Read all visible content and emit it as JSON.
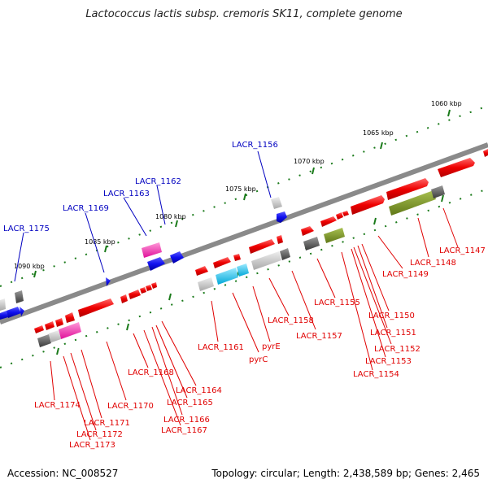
{
  "title": "Lactococcus lactis subsp. cremoris SK11, complete genome",
  "accession": "Accession: NC_008527",
  "topology": "Topology: circular; Length: 2,438,589 bp; Genes: 2,465",
  "colors": {
    "label_red": "#e00000",
    "label_blue": "#0000c0",
    "backbone": "#8a8a8a",
    "tick": "#2a8a2a"
  },
  "scale_marks": [
    "1060 kbp",
    "1065 kbp",
    "1070 kbp",
    "1075 kbp",
    "1080 kbp",
    "1085 kbp",
    "1090 kbp"
  ],
  "top_labels": [
    "LACR_1156",
    "LACR_1162",
    "LACR_1163",
    "LACR_1169",
    "LACR_1175"
  ],
  "bottom_labels": [
    "LACR_1147",
    "LACR_1148",
    "LACR_1149",
    "LACR_1150",
    "LACR_1151",
    "LACR_1152",
    "LACR_1153",
    "LACR_1154",
    "LACR_1155",
    "LACR_1157",
    "LACR_1158",
    "pyrE",
    "pyrC",
    "LACR_1161",
    "LACR_1164",
    "LACR_1165",
    "LACR_1166",
    "LACR_1167",
    "LACR_1168",
    "LACR_1170",
    "LACR_1171",
    "LACR_1172",
    "LACR_1173",
    "LACR_1174"
  ]
}
